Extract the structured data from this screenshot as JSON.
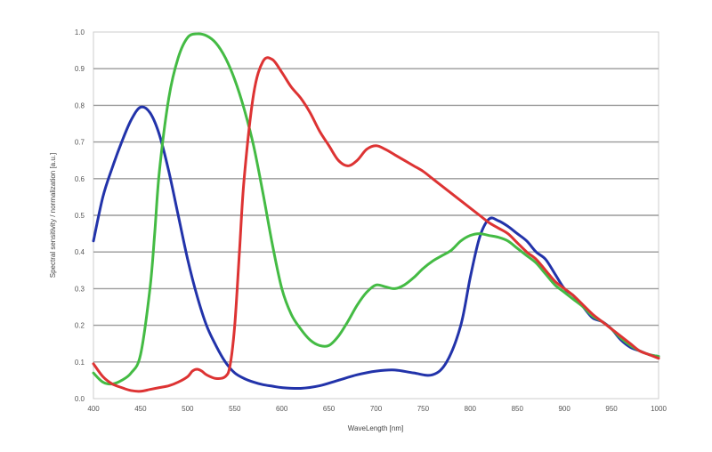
{
  "chart_data": {
    "type": "line",
    "title": "",
    "xlabel": "WaveLength [nm]",
    "ylabel": "Spectral sensitivity / normalization [a.u.]",
    "xlim": [
      400,
      1000
    ],
    "ylim": [
      0,
      1.0
    ],
    "x_ticks": [
      "400",
      "450",
      "500",
      "550",
      "600",
      "650",
      "700",
      "750",
      "800",
      "850",
      "900",
      "950",
      "1000"
    ],
    "y_ticks": [
      "0.0",
      "0.1",
      "0.2",
      "0.3",
      "0.4",
      "0.5",
      "0.6",
      "0.7",
      "0.8",
      "0.9",
      "1.0"
    ],
    "grid": "horizontal",
    "legend": "none",
    "series": [
      {
        "color": "#2233aa",
        "x": [
          400,
          410,
          420,
          430,
          440,
          450,
          460,
          470,
          480,
          490,
          500,
          510,
          520,
          530,
          540,
          550,
          560,
          570,
          580,
          590,
          600,
          620,
          640,
          660,
          680,
          700,
          720,
          740,
          760,
          775,
          790,
          800,
          810,
          820,
          830,
          840,
          850,
          860,
          870,
          880,
          890,
          900,
          910,
          920,
          930,
          940,
          950,
          960,
          970,
          980,
          990,
          1000
        ],
        "y": [
          0.43,
          0.55,
          0.63,
          0.7,
          0.76,
          0.795,
          0.78,
          0.72,
          0.62,
          0.5,
          0.38,
          0.28,
          0.2,
          0.145,
          0.1,
          0.07,
          0.055,
          0.045,
          0.038,
          0.034,
          0.03,
          0.028,
          0.035,
          0.05,
          0.065,
          0.075,
          0.078,
          0.07,
          0.065,
          0.1,
          0.2,
          0.33,
          0.44,
          0.49,
          0.485,
          0.47,
          0.45,
          0.43,
          0.4,
          0.38,
          0.34,
          0.3,
          0.28,
          0.25,
          0.22,
          0.21,
          0.19,
          0.16,
          0.14,
          0.13,
          0.12,
          0.115
        ]
      },
      {
        "color": "#44bb44",
        "x": [
          400,
          410,
          420,
          430,
          440,
          450,
          460,
          465,
          470,
          480,
          490,
          500,
          510,
          520,
          530,
          540,
          550,
          560,
          570,
          580,
          590,
          600,
          610,
          620,
          630,
          640,
          650,
          660,
          670,
          680,
          690,
          700,
          710,
          720,
          730,
          740,
          750,
          760,
          770,
          780,
          790,
          800,
          810,
          820,
          830,
          840,
          850,
          860,
          870,
          880,
          890,
          900,
          910,
          920,
          930,
          940,
          950,
          960,
          970,
          980,
          990,
          1000
        ],
        "y": [
          0.07,
          0.045,
          0.04,
          0.05,
          0.07,
          0.12,
          0.3,
          0.45,
          0.62,
          0.82,
          0.93,
          0.985,
          0.995,
          0.99,
          0.97,
          0.93,
          0.87,
          0.79,
          0.69,
          0.56,
          0.42,
          0.3,
          0.23,
          0.19,
          0.16,
          0.145,
          0.145,
          0.17,
          0.21,
          0.255,
          0.29,
          0.31,
          0.305,
          0.3,
          0.31,
          0.33,
          0.355,
          0.375,
          0.39,
          0.405,
          0.43,
          0.445,
          0.45,
          0.445,
          0.44,
          0.43,
          0.41,
          0.39,
          0.37,
          0.34,
          0.31,
          0.29,
          0.27,
          0.25,
          0.225,
          0.21,
          0.19,
          0.165,
          0.145,
          0.13,
          0.12,
          0.115
        ]
      },
      {
        "color": "#dd3333",
        "x": [
          400,
          410,
          420,
          430,
          440,
          450,
          460,
          470,
          480,
          490,
          500,
          505,
          510,
          515,
          520,
          530,
          540,
          545,
          550,
          555,
          560,
          570,
          580,
          590,
          600,
          610,
          620,
          630,
          640,
          650,
          660,
          670,
          680,
          690,
          700,
          710,
          720,
          730,
          740,
          750,
          760,
          770,
          780,
          790,
          800,
          810,
          820,
          830,
          840,
          850,
          860,
          870,
          880,
          890,
          900,
          910,
          920,
          930,
          940,
          950,
          960,
          970,
          980,
          990,
          1000
        ],
        "y": [
          0.095,
          0.06,
          0.04,
          0.03,
          0.022,
          0.02,
          0.025,
          0.03,
          0.035,
          0.045,
          0.06,
          0.075,
          0.08,
          0.075,
          0.065,
          0.055,
          0.06,
          0.09,
          0.2,
          0.4,
          0.6,
          0.83,
          0.92,
          0.925,
          0.89,
          0.85,
          0.82,
          0.78,
          0.73,
          0.69,
          0.65,
          0.635,
          0.65,
          0.68,
          0.69,
          0.68,
          0.665,
          0.65,
          0.635,
          0.62,
          0.6,
          0.58,
          0.56,
          0.54,
          0.52,
          0.5,
          0.48,
          0.465,
          0.45,
          0.425,
          0.4,
          0.38,
          0.35,
          0.32,
          0.3,
          0.28,
          0.255,
          0.23,
          0.21,
          0.19,
          0.17,
          0.15,
          0.13,
          0.12,
          0.11
        ]
      }
    ]
  }
}
